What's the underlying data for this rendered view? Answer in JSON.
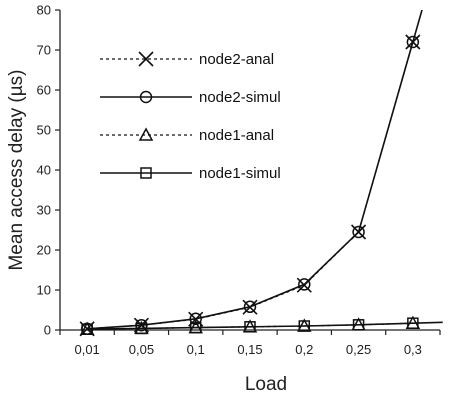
{
  "chart_data": {
    "type": "line",
    "title": "",
    "xlabel": "Load",
    "ylabel": "Mean access delay (µs)",
    "categories": [
      "0,01",
      "0,05",
      "0,1",
      "0,15",
      "0,2",
      "0,25",
      "0,3"
    ],
    "ylim": [
      0,
      80
    ],
    "yticks": [
      0,
      10,
      20,
      30,
      40,
      50,
      60,
      70,
      80
    ],
    "grid": false,
    "legend_position": "upper-left",
    "series": [
      {
        "name": "node2-anal",
        "values": [
          0.3,
          1.2,
          2.7,
          5.7,
          11.2,
          24.5,
          72.0
        ],
        "line": "dashed",
        "marker": "x"
      },
      {
        "name": "node2-simul",
        "values": [
          0.3,
          1.2,
          2.8,
          5.8,
          11.4,
          24.5,
          72.0
        ],
        "line": "solid",
        "marker": "circle"
      },
      {
        "name": "node1-anal",
        "values": [
          0.2,
          0.4,
          0.6,
          0.8,
          1.0,
          1.3,
          1.7
        ],
        "line": "dashed",
        "marker": "triangle"
      },
      {
        "name": "node1-simul",
        "values": [
          0.2,
          0.4,
          0.6,
          0.8,
          1.0,
          1.3,
          1.7
        ],
        "line": "solid",
        "marker": "square"
      }
    ],
    "colors": {
      "line": "#111111",
      "axis": "#222222"
    }
  }
}
